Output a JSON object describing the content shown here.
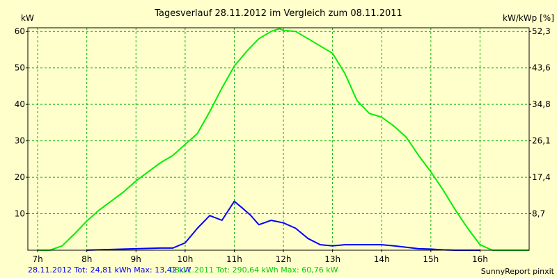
{
  "chart_data": {
    "type": "line",
    "title": "Tagesverlauf 28.11.2012 im Vergleich zum 08.11.2011",
    "ylabel_left": "kW",
    "ylabel_right": "kW/kWp [%]",
    "xlim": [
      6.8,
      17.0
    ],
    "ylim": [
      0,
      61
    ],
    "x_ticks": [
      7,
      8,
      9,
      10,
      11,
      12,
      13,
      14,
      15,
      16
    ],
    "x_tick_labels": [
      "7h",
      "8h",
      "9h",
      "10h",
      "11h",
      "12h",
      "13h",
      "14h",
      "15h",
      "16h"
    ],
    "y_ticks_left": [
      10,
      20,
      30,
      40,
      50,
      60
    ],
    "y_tick_labels_left": [
      "10",
      "20",
      "30",
      "40",
      "50",
      "60"
    ],
    "y_ticks_right_at": [
      10,
      20,
      30,
      40,
      50,
      60
    ],
    "y_tick_labels_right": [
      "8,7",
      "17,4",
      "26,1",
      "34,8",
      "43,6",
      "52,3"
    ],
    "grid": true,
    "colors": {
      "background": "#ffffcc",
      "axis": "#000000",
      "grid": "#00b000",
      "series_2012": "#0000ff",
      "series_2011": "#00ee00"
    },
    "series": [
      {
        "key": "series_2012",
        "x": [
          8.0,
          9.0,
          9.5,
          9.75,
          10.0,
          10.25,
          10.5,
          10.75,
          11.0,
          11.17,
          11.33,
          11.5,
          11.75,
          12.0,
          12.25,
          12.5,
          12.75,
          13.0,
          13.25,
          13.5,
          13.75,
          14.0,
          14.25,
          14.5,
          14.75,
          15.0,
          15.25,
          15.5,
          15.75,
          16.0
        ],
        "y": [
          0,
          0.4,
          0.6,
          0.6,
          2.0,
          6.0,
          9.5,
          8.2,
          13.4,
          11.5,
          9.6,
          7.0,
          8.2,
          7.5,
          6.0,
          3.2,
          1.5,
          1.2,
          1.5,
          1.5,
          1.5,
          1.5,
          1.2,
          0.8,
          0.4,
          0.3,
          0.1,
          0,
          0,
          0
        ]
      },
      {
        "key": "series_2011",
        "x": [
          7.0,
          7.25,
          7.5,
          7.75,
          8.0,
          8.25,
          8.5,
          8.75,
          9.0,
          9.25,
          9.5,
          9.75,
          10.0,
          10.25,
          10.5,
          10.75,
          11.0,
          11.25,
          11.5,
          11.75,
          11.92,
          12.0,
          12.25,
          12.5,
          12.75,
          13.0,
          13.25,
          13.5,
          13.75,
          14.0,
          14.25,
          14.5,
          14.75,
          15.0,
          15.25,
          15.5,
          15.75,
          16.0,
          16.25,
          16.5,
          16.75,
          17.0
        ],
        "y": [
          0,
          0,
          1.2,
          4.5,
          8.0,
          11.0,
          13.5,
          16.0,
          19.0,
          21.5,
          24.0,
          26.0,
          29.0,
          32.0,
          38.0,
          44.5,
          50.5,
          54.5,
          58.0,
          60.0,
          60.76,
          60.3,
          60.0,
          58.0,
          56.0,
          54.0,
          48.5,
          41.0,
          37.5,
          36.5,
          34.0,
          31.0,
          26.0,
          21.5,
          16.5,
          11.0,
          6.0,
          1.5,
          0,
          0,
          0,
          0
        ]
      }
    ],
    "footer": {
      "series_2012_text": "28.11.2012 Tot: 24,81 kWh Max: 13,42 kW",
      "series_2011_text": "08.11.2011 Tot: 290,64 kWh Max: 60,76 kW",
      "credit": "SunnyReport pinxit"
    }
  }
}
